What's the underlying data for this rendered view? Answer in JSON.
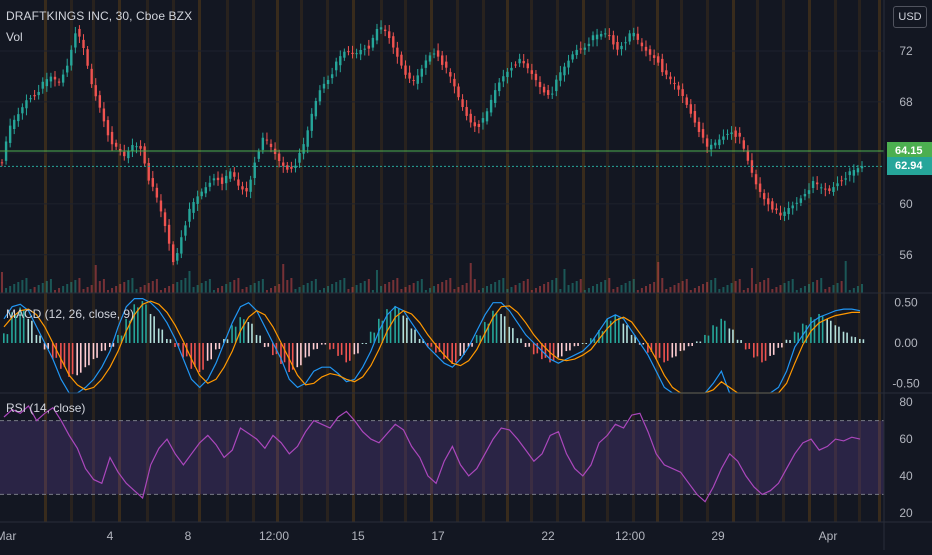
{
  "header": {
    "symbol_line": "DRAFTKINGS INC, 30, Cboe BZX",
    "volume_label": "Vol",
    "currency_button": "USD"
  },
  "indicators": {
    "macd_label": "MACD (12, 26, close, 9)",
    "rsi_label": "RSI (14, close)"
  },
  "colors": {
    "background": "#131722",
    "up": "#26a69a",
    "down": "#ef5350",
    "macd_line": "#2196f3",
    "signal_line": "#ff9800",
    "rsi_line": "#ab47bc",
    "rsi_band": "#7e57c2",
    "session_stripe": "#ff9800",
    "hline_green": "#8bc34a",
    "last_price": "#26a69a",
    "alert_price": "#4caf50"
  },
  "chart_data": [
    {
      "type": "candlestick",
      "title": "DRAFTKINGS INC, 30, Cboe BZX",
      "x_tick_labels": [
        "Mar",
        "4",
        "8",
        "12:00",
        "15",
        "17",
        "22",
        "12:00",
        "29",
        "Apr"
      ],
      "y_tick_labels": [
        "72",
        "68",
        "64",
        "60",
        "56"
      ],
      "ylim": [
        53,
        76
      ],
      "price_tags": [
        {
          "label": "64.15",
          "value": 64.15,
          "color": "#4caf50"
        },
        {
          "label": "62.94",
          "value": 62.94,
          "color": "#26a69a"
        }
      ],
      "close_path": [
        [
          0,
          63.4
        ],
        [
          1,
          66.0
        ],
        [
          2,
          67.0
        ],
        [
          3,
          68.2
        ],
        [
          4,
          68.6
        ],
        [
          5,
          69.4
        ],
        [
          6,
          69.9
        ],
        [
          7,
          69.5
        ],
        [
          8,
          71.0
        ],
        [
          9,
          73.7
        ],
        [
          10,
          72.0
        ],
        [
          11,
          69.2
        ],
        [
          12,
          67.5
        ],
        [
          13,
          65.4
        ],
        [
          14,
          64.2
        ],
        [
          15,
          63.6
        ],
        [
          16,
          64.7
        ],
        [
          17,
          64.4
        ],
        [
          18,
          61.8
        ],
        [
          19,
          60.2
        ],
        [
          20,
          58.0
        ],
        [
          21,
          55.2
        ],
        [
          22,
          57.8
        ],
        [
          23,
          59.6
        ],
        [
          24,
          60.6
        ],
        [
          25,
          61.4
        ],
        [
          26,
          62.2
        ],
        [
          27,
          61.7
        ],
        [
          28,
          62.5
        ],
        [
          29,
          61.2
        ],
        [
          30,
          61.0
        ],
        [
          31,
          63.8
        ],
        [
          32,
          65.2
        ],
        [
          33,
          64.2
        ],
        [
          34,
          63.2
        ],
        [
          35,
          62.7
        ],
        [
          36,
          63.3
        ],
        [
          37,
          64.8
        ],
        [
          38,
          67.5
        ],
        [
          39,
          69.3
        ],
        [
          40,
          70.0
        ],
        [
          41,
          71.2
        ],
        [
          42,
          72.0
        ],
        [
          43,
          71.7
        ],
        [
          44,
          72.3
        ],
        [
          45,
          72.4
        ],
        [
          46,
          73.9
        ],
        [
          47,
          73.4
        ],
        [
          48,
          72.0
        ],
        [
          49,
          70.7
        ],
        [
          50,
          69.3
        ],
        [
          51,
          70.2
        ],
        [
          52,
          71.6
        ],
        [
          53,
          72.0
        ],
        [
          54,
          70.8
        ],
        [
          55,
          69.5
        ],
        [
          56,
          67.9
        ],
        [
          57,
          66.6
        ],
        [
          58,
          66.1
        ],
        [
          59,
          66.7
        ],
        [
          60,
          68.6
        ],
        [
          61,
          69.9
        ],
        [
          62,
          70.7
        ],
        [
          63,
          71.3
        ],
        [
          64,
          70.7
        ],
        [
          65,
          69.9
        ],
        [
          66,
          68.9
        ],
        [
          67,
          68.6
        ],
        [
          68,
          70.0
        ],
        [
          69,
          71.0
        ],
        [
          70,
          72.1
        ],
        [
          71,
          72.3
        ],
        [
          72,
          73.0
        ],
        [
          73,
          73.2
        ],
        [
          74,
          73.4
        ],
        [
          75,
          72.1
        ],
        [
          76,
          72.8
        ],
        [
          77,
          73.4
        ],
        [
          78,
          72.4
        ],
        [
          79,
          71.8
        ],
        [
          80,
          71.4
        ],
        [
          81,
          70.0
        ],
        [
          82,
          69.4
        ],
        [
          83,
          68.6
        ],
        [
          84,
          67.3
        ],
        [
          85,
          66.0
        ],
        [
          86,
          64.3
        ],
        [
          87,
          64.7
        ],
        [
          88,
          65.3
        ],
        [
          89,
          65.8
        ],
        [
          90,
          65.2
        ],
        [
          91,
          63.4
        ],
        [
          92,
          61.6
        ],
        [
          93,
          60.5
        ],
        [
          94,
          59.8
        ],
        [
          95,
          58.9
        ],
        [
          96,
          59.6
        ],
        [
          97,
          60.1
        ],
        [
          98,
          60.9
        ],
        [
          99,
          61.6
        ],
        [
          100,
          61.2
        ],
        [
          101,
          61.0
        ],
        [
          102,
          61.7
        ],
        [
          103,
          62.2
        ],
        [
          104,
          62.5
        ],
        [
          105,
          62.9
        ]
      ]
    },
    {
      "type": "macd",
      "title": "MACD (12, 26, close, 9)",
      "y_tick_labels": [
        "0.50",
        "0.00",
        "-0.50"
      ],
      "ylim": [
        -0.62,
        0.62
      ],
      "histogram": [
        0.12,
        0.38,
        0.44,
        0.3,
        0.1,
        -0.08,
        -0.2,
        -0.32,
        -0.42,
        -0.4,
        -0.3,
        -0.2,
        -0.1,
        -0.05,
        0.1,
        0.3,
        0.48,
        0.52,
        0.36,
        0.18,
        0.05,
        -0.05,
        -0.18,
        -0.32,
        -0.36,
        -0.22,
        -0.08,
        0.05,
        0.22,
        0.32,
        0.26,
        0.1,
        -0.05,
        -0.15,
        -0.26,
        -0.36,
        -0.3,
        -0.18,
        -0.08,
        -0.02,
        -0.08,
        -0.16,
        -0.24,
        -0.14,
        0.0,
        0.14,
        0.3,
        0.42,
        0.46,
        0.34,
        0.18,
        0.05,
        -0.05,
        -0.12,
        -0.2,
        -0.26,
        -0.16,
        -0.05,
        0.1,
        0.26,
        0.4,
        0.36,
        0.2,
        0.06,
        -0.05,
        -0.14,
        -0.2,
        -0.24,
        -0.18,
        -0.1,
        -0.04,
        0.0,
        0.06,
        0.16,
        0.3,
        0.34,
        0.24,
        0.1,
        -0.02,
        -0.12,
        -0.2,
        -0.24,
        -0.18,
        -0.1,
        -0.04,
        0.02,
        0.1,
        0.22,
        0.3,
        0.18,
        0.04,
        -0.08,
        -0.18,
        -0.24,
        -0.16,
        -0.06,
        0.04,
        0.14,
        0.24,
        0.32,
        0.36,
        0.3,
        0.22,
        0.14,
        0.08,
        0.05
      ],
      "macd_line": [
        0.3,
        0.45,
        0.48,
        0.4,
        0.2,
        0.0,
        -0.2,
        -0.45,
        -0.62,
        -0.62,
        -0.55,
        -0.45,
        -0.3,
        -0.1,
        0.2,
        0.45,
        0.55,
        0.55,
        0.5,
        0.4,
        0.25,
        0.05,
        -0.2,
        -0.45,
        -0.55,
        -0.45,
        -0.25,
        0.0,
        0.25,
        0.45,
        0.5,
        0.4,
        0.2,
        0.0,
        -0.2,
        -0.45,
        -0.55,
        -0.5,
        -0.35,
        -0.3,
        -0.3,
        -0.38,
        -0.48,
        -0.45,
        -0.3,
        -0.1,
        0.15,
        0.35,
        0.45,
        0.4,
        0.25,
        0.1,
        -0.05,
        -0.15,
        -0.25,
        -0.3,
        -0.2,
        -0.05,
        0.15,
        0.35,
        0.5,
        0.5,
        0.4,
        0.25,
        0.1,
        0.0,
        -0.1,
        -0.2,
        -0.25,
        -0.2,
        -0.15,
        -0.1,
        0.0,
        0.15,
        0.3,
        0.35,
        0.3,
        0.15,
        0.0,
        -0.15,
        -0.35,
        -0.55,
        -0.62,
        -0.62,
        -0.62,
        -0.62,
        -0.62,
        -0.5,
        -0.35,
        -0.62,
        -0.62,
        -0.62,
        -0.62,
        -0.62,
        -0.62,
        -0.55,
        -0.35,
        -0.05,
        0.1,
        0.25,
        0.32,
        0.36,
        0.4,
        0.42,
        0.42,
        0.4
      ],
      "signal_line": [
        0.2,
        0.32,
        0.4,
        0.42,
        0.35,
        0.2,
        0.0,
        -0.2,
        -0.4,
        -0.52,
        -0.58,
        -0.55,
        -0.45,
        -0.3,
        -0.1,
        0.15,
        0.35,
        0.48,
        0.52,
        0.48,
        0.38,
        0.22,
        0.02,
        -0.2,
        -0.4,
        -0.5,
        -0.45,
        -0.3,
        -0.1,
        0.15,
        0.32,
        0.4,
        0.35,
        0.2,
        0.0,
        -0.2,
        -0.4,
        -0.52,
        -0.5,
        -0.42,
        -0.38,
        -0.4,
        -0.45,
        -0.48,
        -0.42,
        -0.28,
        -0.08,
        0.15,
        0.32,
        0.4,
        0.36,
        0.25,
        0.1,
        -0.03,
        -0.15,
        -0.25,
        -0.28,
        -0.22,
        -0.08,
        0.12,
        0.32,
        0.45,
        0.46,
        0.38,
        0.25,
        0.1,
        -0.02,
        -0.12,
        -0.2,
        -0.22,
        -0.2,
        -0.15,
        -0.08,
        0.05,
        0.18,
        0.28,
        0.32,
        0.26,
        0.12,
        -0.02,
        -0.2,
        -0.4,
        -0.55,
        -0.62,
        -0.62,
        -0.62,
        -0.62,
        -0.58,
        -0.48,
        -0.55,
        -0.62,
        -0.62,
        -0.62,
        -0.62,
        -0.62,
        -0.62,
        -0.5,
        -0.25,
        -0.02,
        0.15,
        0.25,
        0.3,
        0.34,
        0.36,
        0.38,
        0.38
      ]
    },
    {
      "type": "line",
      "title": "RSI (14, close)",
      "y_tick_labels": [
        "80",
        "60",
        "40",
        "20"
      ],
      "ylim": [
        15,
        85
      ],
      "band": [
        30,
        70
      ],
      "values": [
        72,
        76,
        74,
        78,
        70,
        74,
        77,
        70,
        62,
        55,
        44,
        38,
        36,
        50,
        42,
        36,
        32,
        28,
        46,
        55,
        60,
        52,
        46,
        52,
        58,
        62,
        57,
        50,
        54,
        66,
        63,
        60,
        55,
        62,
        58,
        52,
        56,
        64,
        70,
        68,
        66,
        72,
        75,
        70,
        64,
        60,
        58,
        63,
        68,
        65,
        56,
        50,
        40,
        36,
        48,
        56,
        46,
        40,
        44,
        52,
        60,
        66,
        65,
        60,
        54,
        48,
        52,
        62,
        64,
        52,
        44,
        40,
        46,
        58,
        62,
        68,
        66,
        73,
        74,
        64,
        52,
        46,
        44,
        42,
        36,
        30,
        26,
        34,
        44,
        52,
        48,
        40,
        34,
        30,
        32,
        36,
        44,
        52,
        58,
        60,
        54,
        56,
        60,
        59,
        61,
        60
      ]
    }
  ]
}
